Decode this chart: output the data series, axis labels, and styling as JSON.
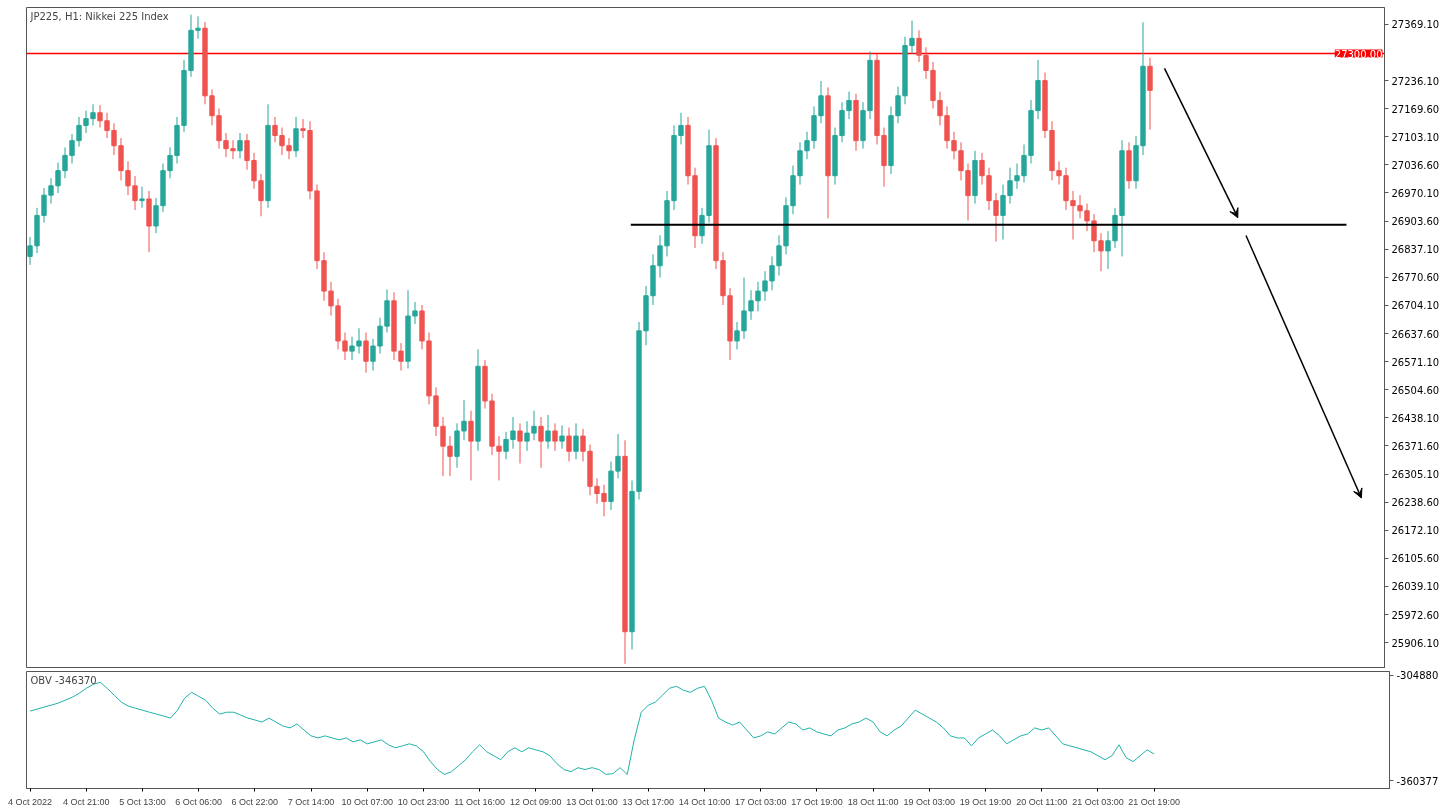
{
  "chart_data": [
    {
      "type": "candlestick",
      "title": "JP225, H1:  Nikkei 225 Index",
      "tick_labels": "y",
      "grid": false,
      "categories": [
        null,
        null,
        null,
        null,
        null,
        null,
        null,
        null,
        null,
        null,
        null,
        null,
        null,
        null,
        null,
        null,
        null,
        null,
        null,
        null,
        null,
        null,
        null,
        null,
        null,
        null,
        null,
        null,
        null,
        null,
        null,
        null,
        null,
        null,
        null,
        null,
        null,
        null,
        null,
        null,
        null,
        null,
        null,
        null,
        null,
        null,
        null,
        null,
        null,
        null,
        null,
        null,
        null,
        null,
        null,
        null,
        null,
        null,
        null,
        null,
        null,
        null,
        null,
        null,
        null,
        null,
        null,
        null,
        null,
        null,
        null,
        null,
        null,
        null,
        null,
        null,
        null,
        null,
        null,
        null,
        null,
        null,
        null,
        null,
        null,
        null,
        null,
        null,
        null,
        null,
        null,
        null,
        null,
        null,
        null,
        null,
        null,
        null,
        null,
        null,
        null,
        null,
        null,
        null,
        null,
        null,
        null,
        null,
        null,
        null,
        null,
        null,
        null,
        null,
        null,
        null,
        null,
        null,
        null,
        null,
        null,
        null,
        null,
        null,
        null,
        null,
        null,
        null,
        null,
        null,
        null,
        null,
        null,
        null,
        null,
        null,
        null,
        null,
        null,
        null,
        null,
        null,
        null,
        null,
        null,
        null,
        null,
        null,
        null,
        null,
        null,
        null,
        null,
        null,
        null,
        null,
        null,
        null,
        null,
        null,
        null,
        null,
        null,
        null,
        null,
        null,
        null,
        null,
        null,
        null,
        null,
        null,
        null,
        null,
        null,
        null,
        null,
        null,
        null,
        null,
        null,
        null,
        null,
        null,
        null,
        null,
        null,
        null,
        null,
        null,
        null,
        null,
        null,
        null
      ],
      "ylim": [
        25845,
        27409
      ],
      "yticks": [
        {
          "value": 27369.1,
          "label": "27369.10"
        },
        {
          "value": 27236.1,
          "label": "27236.10"
        },
        {
          "value": 27169.6,
          "label": "27169.60"
        },
        {
          "value": 27103.1,
          "label": "27103.10"
        },
        {
          "value": 27036.6,
          "label": "27036.60"
        },
        {
          "value": 26970.1,
          "label": "26970.10"
        },
        {
          "value": 26903.6,
          "label": "26903.60"
        },
        {
          "value": 26837.1,
          "label": "26837.10"
        },
        {
          "value": 26770.6,
          "label": "26770.60"
        },
        {
          "value": 26704.1,
          "label": "26704.10"
        },
        {
          "value": 26637.6,
          "label": "26637.60"
        },
        {
          "value": 26571.1,
          "label": "26571.10"
        },
        {
          "value": 26504.6,
          "label": "26504.60"
        },
        {
          "value": 26438.1,
          "label": "26438.10"
        },
        {
          "value": 26371.6,
          "label": "26371.60"
        },
        {
          "value": 26305.1,
          "label": "26305.10"
        },
        {
          "value": 26238.6,
          "label": "26238.60"
        },
        {
          "value": 26172.1,
          "label": "26172.10"
        },
        {
          "value": 26105.6,
          "label": "26105.60"
        },
        {
          "value": 26039.1,
          "label": "26039.10"
        },
        {
          "value": 25972.6,
          "label": "25972.60"
        },
        {
          "value": 25906.1,
          "label": "25906.10"
        }
      ],
      "ref_lines": [
        {
          "axis": "y",
          "value": 27300,
          "label": "27300.00",
          "color": "#ff0000"
        },
        {
          "axis": "y",
          "value": 26895,
          "label": null,
          "color": "#000000"
        }
      ],
      "ohlc": [
        [
          26820,
          26866,
          26800,
          26845
        ],
        [
          26845,
          26935,
          26828,
          26917
        ],
        [
          26917,
          26982,
          26900,
          26965
        ],
        [
          26965,
          27005,
          26945,
          26987
        ],
        [
          26987,
          27042,
          26970,
          27023
        ],
        [
          27023,
          27078,
          27005,
          27059
        ],
        [
          27059,
          27110,
          27040,
          27094
        ],
        [
          27094,
          27150,
          27080,
          27130
        ],
        [
          27130,
          27165,
          27112,
          27146
        ],
        [
          27146,
          27180,
          27130,
          27160
        ],
        [
          27160,
          27178,
          27125,
          27141
        ],
        [
          27141,
          27160,
          27100,
          27118
        ],
        [
          27118,
          27135,
          27060,
          27082
        ],
        [
          27082,
          27100,
          27000,
          27023
        ],
        [
          27023,
          27045,
          26965,
          26987
        ],
        [
          26987,
          27010,
          26930,
          26952
        ],
        [
          26952,
          26985,
          26935,
          26956
        ],
        [
          26956,
          26975,
          26830,
          26892
        ],
        [
          26892,
          26958,
          26875,
          26940
        ],
        [
          26940,
          27040,
          26925,
          27023
        ],
        [
          27023,
          27078,
          27005,
          27059
        ],
        [
          27059,
          27150,
          27040,
          27130
        ],
        [
          27130,
          27285,
          27115,
          27260
        ],
        [
          27260,
          27392,
          27245,
          27355
        ],
        [
          27355,
          27388,
          27335,
          27360
        ],
        [
          27360,
          27375,
          27180,
          27200
        ],
        [
          27200,
          27215,
          27130,
          27153
        ],
        [
          27153,
          27170,
          27075,
          27094
        ],
        [
          27094,
          27112,
          27055,
          27075
        ],
        [
          27075,
          27095,
          27050,
          27070
        ],
        [
          27070,
          27112,
          27052,
          27094
        ],
        [
          27094,
          27110,
          27025,
          27047
        ],
        [
          27047,
          27065,
          26980,
          26999
        ],
        [
          26999,
          27015,
          26915,
          26952
        ],
        [
          26952,
          27180,
          26935,
          27130
        ],
        [
          27130,
          27150,
          27090,
          27106
        ],
        [
          27106,
          27125,
          27060,
          27082
        ],
        [
          27082,
          27100,
          27050,
          27070
        ],
        [
          27070,
          27150,
          27055,
          27122
        ],
        [
          27122,
          27145,
          27100,
          27118
        ],
        [
          27118,
          27140,
          26955,
          26975
        ],
        [
          26975,
          26990,
          26790,
          26810
        ],
        [
          26810,
          26830,
          26715,
          26738
        ],
        [
          26738,
          26760,
          26680,
          26703
        ],
        [
          26703,
          26720,
          26600,
          26620
        ],
        [
          26620,
          26640,
          26575,
          26596
        ],
        [
          26596,
          26630,
          26575,
          26608
        ],
        [
          26608,
          26650,
          26590,
          26620
        ],
        [
          26620,
          26640,
          26545,
          26572
        ],
        [
          26572,
          26625,
          26550,
          26608
        ],
        [
          26608,
          26675,
          26590,
          26655
        ],
        [
          26655,
          26742,
          26640,
          26715
        ],
        [
          26715,
          26735,
          26575,
          26596
        ],
        [
          26596,
          26615,
          26550,
          26572
        ],
        [
          26572,
          26740,
          26555,
          26679
        ],
        [
          26679,
          26712,
          26660,
          26691
        ],
        [
          26691,
          26705,
          26600,
          26620
        ],
        [
          26620,
          26640,
          26470,
          26490
        ],
        [
          26490,
          26510,
          26395,
          26418
        ],
        [
          26418,
          26440,
          26300,
          26371
        ],
        [
          26371,
          26395,
          26300,
          26347
        ],
        [
          26347,
          26425,
          26320,
          26407
        ],
        [
          26407,
          26480,
          26385,
          26430
        ],
        [
          26430,
          26455,
          26290,
          26383
        ],
        [
          26383,
          26600,
          26360,
          26560
        ],
        [
          26560,
          26575,
          26460,
          26478
        ],
        [
          26478,
          26495,
          26350,
          26371
        ],
        [
          26371,
          26395,
          26290,
          26359
        ],
        [
          26359,
          26405,
          26340,
          26387
        ],
        [
          26387,
          26440,
          26365,
          26407
        ],
        [
          26407,
          26425,
          26330,
          26383
        ],
        [
          26383,
          26430,
          26360,
          26402
        ],
        [
          26402,
          26455,
          26385,
          26418
        ],
        [
          26418,
          26440,
          26320,
          26383
        ],
        [
          26383,
          26445,
          26365,
          26407
        ],
        [
          26407,
          26425,
          26360,
          26383
        ],
        [
          26383,
          26420,
          26365,
          26395
        ],
        [
          26395,
          26415,
          26335,
          26359
        ],
        [
          26359,
          26425,
          26340,
          26395
        ],
        [
          26395,
          26412,
          26335,
          26359
        ],
        [
          26359,
          26375,
          26255,
          26276
        ],
        [
          26276,
          26295,
          26235,
          26259
        ],
        [
          26259,
          26280,
          26205,
          26240
        ],
        [
          26240,
          26335,
          26220,
          26312
        ],
        [
          26312,
          26400,
          26295,
          26347
        ],
        [
          26347,
          26385,
          25856,
          25932
        ],
        [
          25932,
          26290,
          25890,
          26264
        ],
        [
          26264,
          26665,
          26245,
          26644
        ],
        [
          26644,
          26750,
          26610,
          26727
        ],
        [
          26727,
          26825,
          26705,
          26798
        ],
        [
          26798,
          26870,
          26770,
          26845
        ],
        [
          26845,
          26975,
          26820,
          26952
        ],
        [
          26952,
          27130,
          26930,
          27106
        ],
        [
          27106,
          27160,
          27085,
          27130
        ],
        [
          27130,
          27150,
          26990,
          27011
        ],
        [
          27011,
          27030,
          26840,
          26869
        ],
        [
          26869,
          26935,
          26850,
          26917
        ],
        [
          26917,
          27120,
          26900,
          27082
        ],
        [
          27082,
          27100,
          26790,
          26810
        ],
        [
          26810,
          26830,
          26705,
          26727
        ],
        [
          26727,
          26745,
          26575,
          26620
        ],
        [
          26620,
          26665,
          26600,
          26644
        ],
        [
          26644,
          26770,
          26625,
          26691
        ],
        [
          26691,
          26740,
          26670,
          26715
        ],
        [
          26715,
          26760,
          26690,
          26738
        ],
        [
          26738,
          26785,
          26715,
          26762
        ],
        [
          26762,
          26820,
          26740,
          26798
        ],
        [
          26798,
          26870,
          26775,
          26845
        ],
        [
          26845,
          26960,
          26825,
          26940
        ],
        [
          26940,
          27035,
          26920,
          27011
        ],
        [
          27011,
          27090,
          26990,
          27070
        ],
        [
          27070,
          27115,
          27050,
          27094
        ],
        [
          27094,
          27175,
          27075,
          27153
        ],
        [
          27153,
          27235,
          27135,
          27200
        ],
        [
          27200,
          27220,
          26910,
          27011
        ],
        [
          27011,
          27125,
          26990,
          27106
        ],
        [
          27106,
          27185,
          27090,
          27165
        ],
        [
          27165,
          27210,
          27145,
          27189
        ],
        [
          27189,
          27205,
          27070,
          27094
        ],
        [
          27094,
          27185,
          27075,
          27165
        ],
        [
          27165,
          27305,
          27145,
          27284
        ],
        [
          27284,
          27300,
          27085,
          27106
        ],
        [
          27106,
          27125,
          26985,
          27035
        ],
        [
          27035,
          27175,
          27015,
          27153
        ],
        [
          27153,
          27222,
          27135,
          27200
        ],
        [
          27200,
          27340,
          27180,
          27319
        ],
        [
          27319,
          27378,
          27300,
          27336
        ],
        [
          27336,
          27355,
          27280,
          27296
        ],
        [
          27296,
          27315,
          27240,
          27260
        ],
        [
          27260,
          27280,
          27170,
          27189
        ],
        [
          27189,
          27210,
          27130,
          27153
        ],
        [
          27153,
          27175,
          27075,
          27094
        ],
        [
          27094,
          27115,
          27050,
          27070
        ],
        [
          27070,
          27090,
          27000,
          27023
        ],
        [
          27023,
          27040,
          26905,
          26964
        ],
        [
          26964,
          27070,
          26945,
          27047
        ],
        [
          27047,
          27065,
          26990,
          27011
        ],
        [
          27011,
          27030,
          26930,
          26952
        ],
        [
          26952,
          26970,
          26855,
          26917
        ],
        [
          26917,
          26990,
          26860,
          26964
        ],
        [
          26964,
          27030,
          26945,
          26999
        ],
        [
          26999,
          27040,
          26980,
          27011
        ],
        [
          27011,
          27085,
          26995,
          27059
        ],
        [
          27059,
          27190,
          27040,
          27165
        ],
        [
          27165,
          27285,
          27145,
          27236
        ],
        [
          27236,
          27255,
          27100,
          27118
        ],
        [
          27118,
          27140,
          27000,
          27023
        ],
        [
          27023,
          27045,
          26990,
          27011
        ],
        [
          27011,
          27030,
          26930,
          26952
        ],
        [
          26952,
          26975,
          26860,
          26940
        ],
        [
          26940,
          26965,
          26910,
          26928
        ],
        [
          26928,
          26945,
          26880,
          26904
        ],
        [
          26904,
          26920,
          26830,
          26857
        ],
        [
          26857,
          26875,
          26785,
          26833
        ],
        [
          26833,
          26880,
          26790,
          26857
        ],
        [
          26857,
          26935,
          26840,
          26917
        ],
        [
          26917,
          27095,
          26820,
          27070
        ],
        [
          27070,
          27090,
          26980,
          26999
        ],
        [
          26999,
          27105,
          26980,
          27082
        ],
        [
          27082,
          27374,
          27060,
          27270
        ],
        [
          27270,
          27290,
          27120,
          27213
        ],
        null,
        null,
        null,
        null,
        null,
        null,
        null,
        null,
        null,
        null,
        null,
        null,
        null,
        null,
        null,
        null,
        null,
        null,
        null,
        null,
        null,
        null,
        null,
        null,
        null,
        null,
        null,
        null,
        null,
        null,
        null,
        null,
        null
      ],
      "colors": [
        "#26a69a",
        "#26a69a",
        "#26a69a",
        "#26a69a",
        "#26a69a",
        "#26a69a",
        "#26a69a",
        "#26a69a",
        "#26a69a",
        "#26a69a",
        "#ef5350",
        "#ef5350",
        "#ef5350",
        "#ef5350",
        "#ef5350",
        "#ef5350",
        "#26a69a",
        "#ef5350",
        "#26a69a",
        "#26a69a",
        "#26a69a",
        "#26a69a",
        "#26a69a",
        "#26a69a",
        "#26a69a",
        "#ef5350",
        "#ef5350",
        "#ef5350",
        "#ef5350",
        "#ef5350",
        "#26a69a",
        "#ef5350",
        "#ef5350",
        "#ef5350",
        "#26a69a",
        "#ef5350",
        "#ef5350",
        "#ef5350",
        "#26a69a",
        "#ef5350",
        "#ef5350",
        "#ef5350",
        "#ef5350",
        "#ef5350",
        "#ef5350",
        "#ef5350",
        "#26a69a",
        "#26a69a",
        "#ef5350",
        "#26a69a",
        "#26a69a",
        "#26a69a",
        "#ef5350",
        "#ef5350",
        "#26a69a",
        "#26a69a",
        "#ef5350",
        "#ef5350",
        "#ef5350",
        "#ef5350",
        "#ef5350",
        "#26a69a",
        "#26a69a",
        "#ef5350",
        "#26a69a",
        "#ef5350",
        "#ef5350",
        "#ef5350",
        "#26a69a",
        "#26a69a",
        "#ef5350",
        "#26a69a",
        "#26a69a",
        "#ef5350",
        "#26a69a",
        "#ef5350",
        "#26a69a",
        "#ef5350",
        "#26a69a",
        "#ef5350",
        "#ef5350",
        "#ef5350",
        "#ef5350",
        "#26a69a",
        "#26a69a",
        "#ef5350",
        "#26a69a",
        "#26a69a",
        "#26a69a",
        "#26a69a",
        "#26a69a",
        "#26a69a",
        "#26a69a",
        "#26a69a",
        "#ef5350",
        "#ef5350",
        "#26a69a",
        "#26a69a",
        "#ef5350",
        "#ef5350",
        "#ef5350",
        "#26a69a",
        "#26a69a",
        "#26a69a",
        "#26a69a",
        "#26a69a",
        "#26a69a",
        "#26a69a",
        "#26a69a",
        "#26a69a",
        "#26a69a",
        "#26a69a",
        "#26a69a",
        "#26a69a",
        "#ef5350",
        "#26a69a",
        "#26a69a",
        "#26a69a",
        "#ef5350",
        "#26a69a",
        "#26a69a",
        "#ef5350",
        "#ef5350",
        "#26a69a",
        "#26a69a",
        "#26a69a",
        "#26a69a",
        "#ef5350",
        "#ef5350",
        "#ef5350",
        "#ef5350",
        "#ef5350",
        "#ef5350",
        "#ef5350",
        "#ef5350",
        "#26a69a",
        "#ef5350",
        "#ef5350",
        "#ef5350",
        "#26a69a",
        "#26a69a",
        "#26a69a",
        "#26a69a",
        "#26a69a",
        "#26a69a",
        "#ef5350",
        "#ef5350",
        "#ef5350",
        "#ef5350",
        "#ef5350",
        "#ef5350",
        "#ef5350",
        "#ef5350",
        "#ef5350",
        "#26a69a",
        "#26a69a",
        "#26a69a",
        "#ef5350",
        "#26a69a",
        "#26a69a",
        "#ef5350",
        null,
        null,
        null,
        null,
        null,
        null,
        null,
        null,
        null,
        null,
        null,
        null,
        null,
        null,
        null,
        null,
        null,
        null,
        null,
        null,
        null,
        null,
        null,
        null,
        null,
        null,
        null,
        null,
        null,
        null,
        null,
        null,
        null
      ]
    },
    {
      "type": "line",
      "title": "OBV -346370",
      "grid": false,
      "categories": [
        "4 Oct 2022",
        null,
        null,
        null,
        null,
        null,
        null,
        null,
        "4 Oct 21:00",
        null,
        null,
        null,
        null,
        null,
        null,
        null,
        "5 Oct 13:00",
        null,
        null,
        null,
        null,
        null,
        null,
        null,
        "6 Oct 06:00",
        null,
        null,
        null,
        null,
        null,
        null,
        null,
        "6 Oct 22:00",
        null,
        null,
        null,
        null,
        null,
        null,
        null,
        "7 Oct 14:00",
        null,
        null,
        null,
        null,
        null,
        null,
        null,
        "10 Oct 07:00",
        null,
        null,
        null,
        null,
        null,
        null,
        null,
        "10 Oct 23:00",
        null,
        null,
        null,
        null,
        null,
        null,
        null,
        "11 Oct 16:00",
        null,
        null,
        null,
        null,
        null,
        null,
        null,
        "12 Oct 09:00",
        null,
        null,
        null,
        null,
        null,
        null,
        null,
        "13 Oct 01:00",
        null,
        null,
        null,
        null,
        null,
        null,
        null,
        "13 Oct 17:00",
        null,
        null,
        null,
        null,
        null,
        null,
        null,
        "14 Oct 10:00",
        null,
        null,
        null,
        null,
        null,
        null,
        null,
        "17 Oct 03:00",
        null,
        null,
        null,
        null,
        null,
        null,
        null,
        "17 Oct 19:00",
        null,
        null,
        null,
        null,
        null,
        null,
        null,
        "18 Oct 11:00",
        null,
        null,
        null,
        null,
        null,
        null,
        null,
        "19 Oct 03:00",
        null,
        null,
        null,
        null,
        null,
        null,
        null,
        "19 Oct 19:00",
        null,
        null,
        null,
        null,
        null,
        null,
        null,
        "20 Oct 11:00",
        null,
        null,
        null,
        null,
        null,
        null,
        null,
        "21 Oct 03:00",
        null,
        null,
        null,
        null,
        null,
        null,
        null,
        "21 Oct 19:00",
        null,
        null,
        null,
        null,
        null,
        null,
        null,
        null,
        null,
        null,
        null,
        null,
        null,
        null,
        null,
        null,
        null,
        null,
        null,
        null,
        null,
        null,
        null,
        null,
        null,
        null,
        null,
        null,
        null,
        null,
        null,
        null,
        null
      ],
      "ylim": [
        -364600,
        -302800
      ],
      "yticks": [
        -304880,
        -360377
      ],
      "series": [
        {
          "color": "#20b2aa",
          "values": [
            -323700,
            -322700,
            -321600,
            -320600,
            -319500,
            -318000,
            -316400,
            -314300,
            -311700,
            -309600,
            -308500,
            -311700,
            -315400,
            -319000,
            -321100,
            -322200,
            -323200,
            -324300,
            -325300,
            -326300,
            -327400,
            -323200,
            -316900,
            -313800,
            -315900,
            -318000,
            -322200,
            -325300,
            -324300,
            -324300,
            -325800,
            -327400,
            -328400,
            -329500,
            -327400,
            -329500,
            -331600,
            -332600,
            -330500,
            -333700,
            -336800,
            -337900,
            -336800,
            -337900,
            -338900,
            -337900,
            -340000,
            -338900,
            -341000,
            -340000,
            -338900,
            -341500,
            -343100,
            -342100,
            -341000,
            -342100,
            -345200,
            -350400,
            -354600,
            -357200,
            -355700,
            -352500,
            -349400,
            -345200,
            -341500,
            -345200,
            -347300,
            -349400,
            -345200,
            -343100,
            -345200,
            -343100,
            -344200,
            -345200,
            -347300,
            -351500,
            -354600,
            -355700,
            -353600,
            -354600,
            -353600,
            -354600,
            -357200,
            -356700,
            -353600,
            -357200,
            -338900,
            -324300,
            -320600,
            -319000,
            -315400,
            -311700,
            -310600,
            -312700,
            -313800,
            -311700,
            -310600,
            -318000,
            -327400,
            -329500,
            -331100,
            -329500,
            -333700,
            -337900,
            -336800,
            -334700,
            -335800,
            -332600,
            -329500,
            -330500,
            -333700,
            -332600,
            -334700,
            -335800,
            -336800,
            -333700,
            -332600,
            -330500,
            -329500,
            -327400,
            -329500,
            -334700,
            -336800,
            -333700,
            -331600,
            -327400,
            -323200,
            -325300,
            -327400,
            -329500,
            -332600,
            -336800,
            -337900,
            -337900,
            -342100,
            -337900,
            -335800,
            -333700,
            -336800,
            -341000,
            -338900,
            -336800,
            -335800,
            -332600,
            -333700,
            -332600,
            -336800,
            -341000,
            -342100,
            -343100,
            -344200,
            -345200,
            -347300,
            -349400,
            -347300,
            -341500,
            -348300,
            -350400,
            -347300,
            -344200,
            -346370,
            null,
            null,
            null,
            null,
            null,
            null,
            null,
            null,
            null,
            null,
            null,
            null,
            null,
            null,
            null,
            null,
            null,
            null,
            null,
            null,
            null,
            null,
            null,
            null,
            null,
            null,
            null,
            null,
            null,
            null,
            null,
            null,
            null
          ]
        }
      ]
    }
  ]
}
